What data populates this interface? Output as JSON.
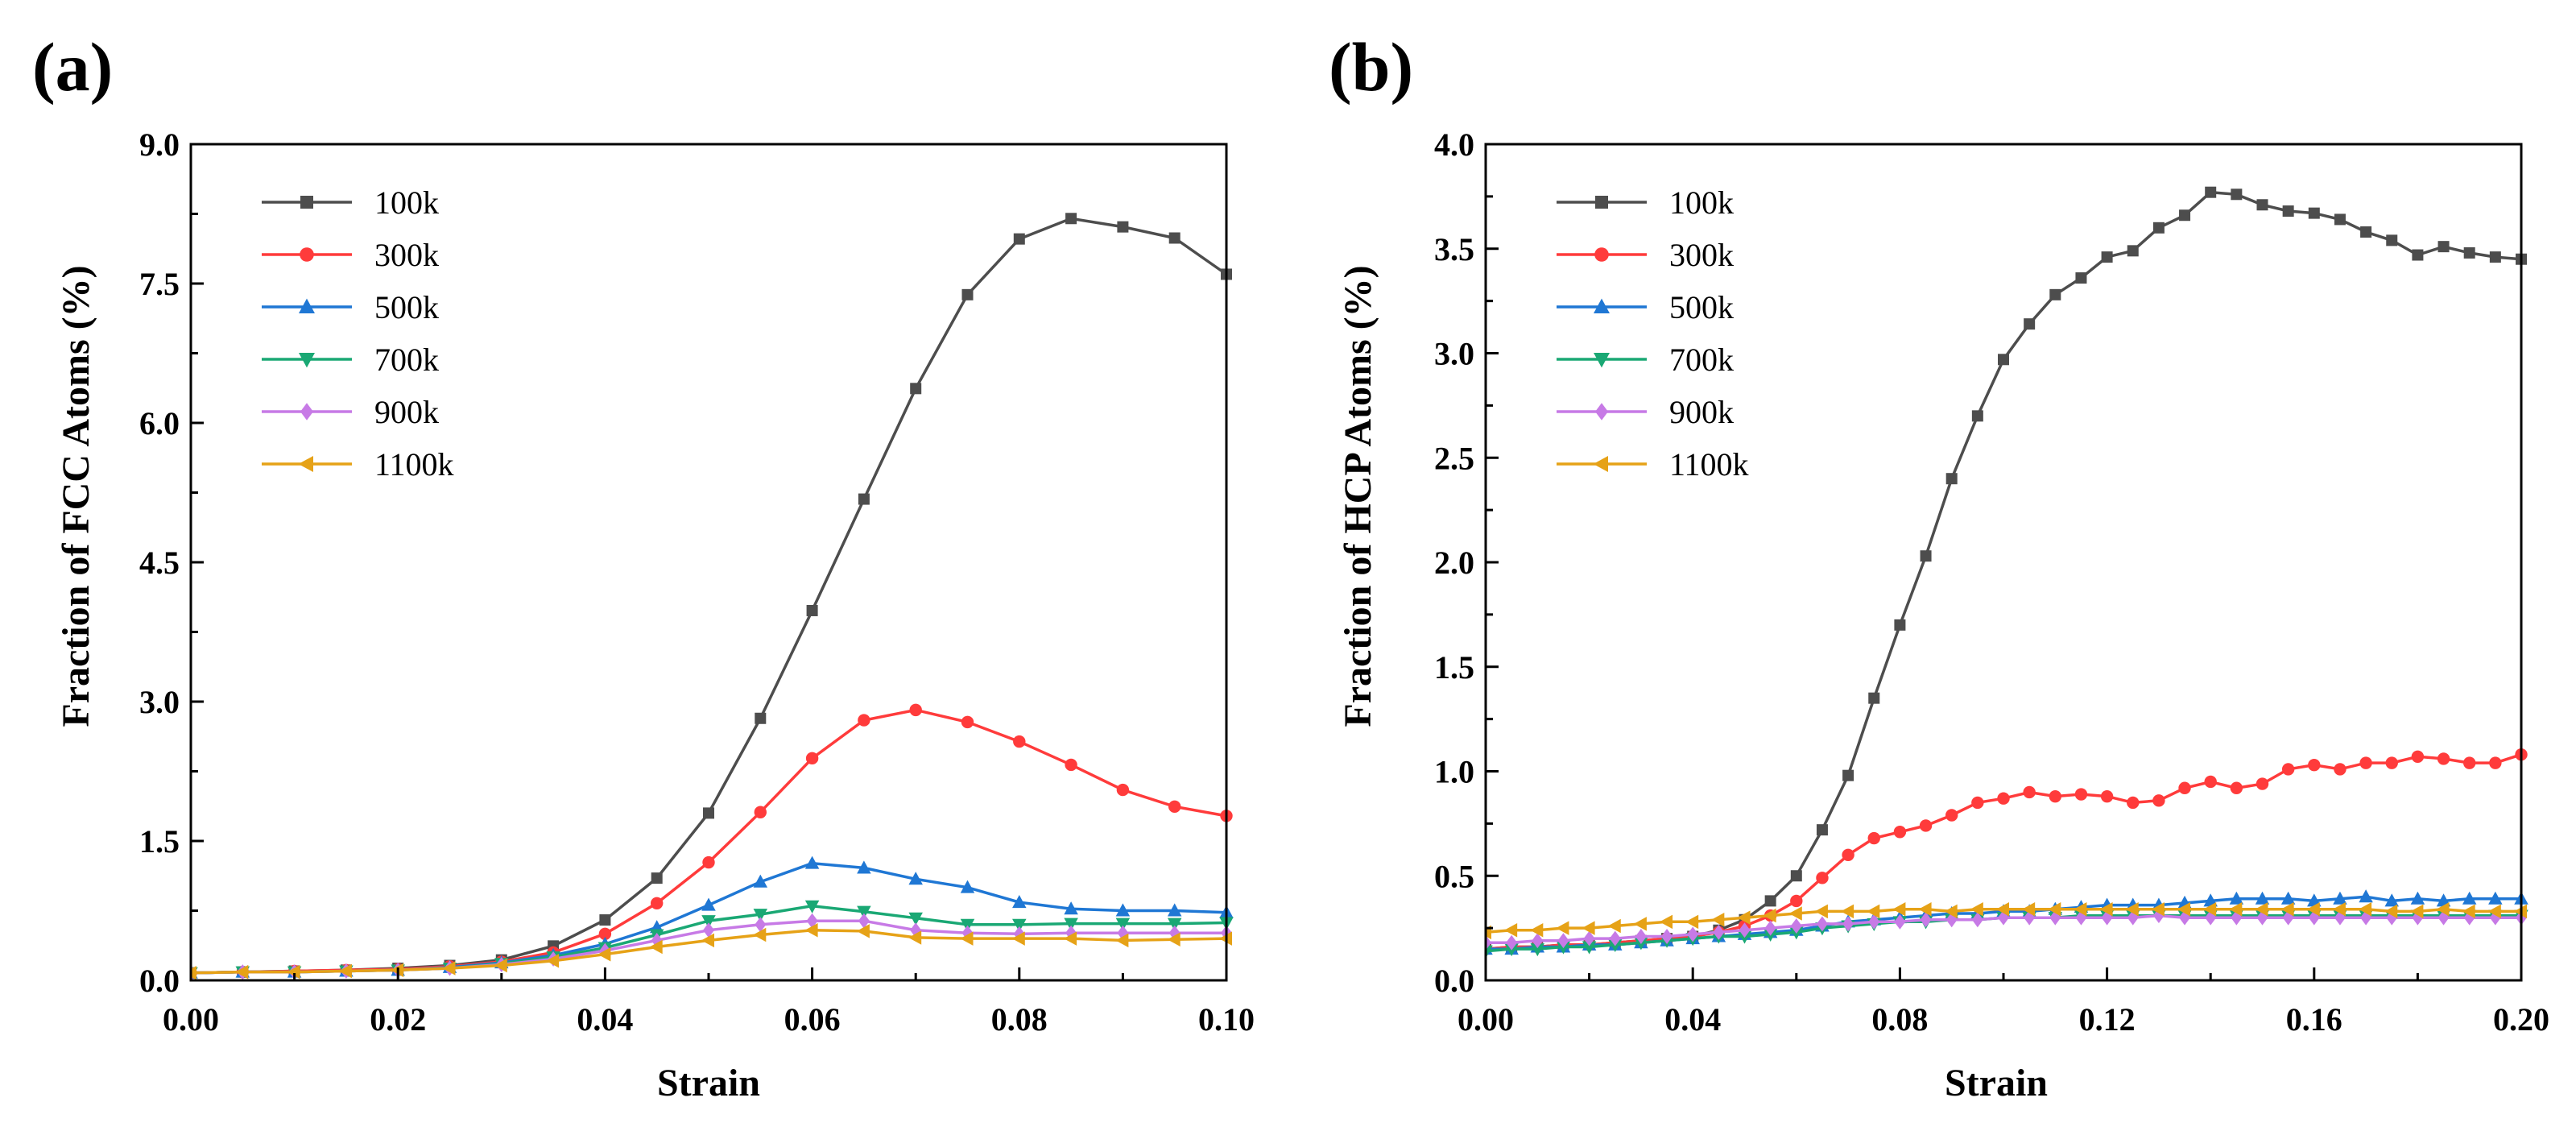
{
  "chart_data": [
    {
      "type": "line",
      "panel_label": "(a)",
      "xlabel": "Strain",
      "ylabel": "Fraction of FCC Atoms (%)",
      "xlim": [
        0,
        0.1
      ],
      "ylim": [
        0,
        9
      ],
      "xticks": [
        0,
        0.02,
        0.04,
        0.06,
        0.08,
        0.1
      ],
      "xtick_labels": [
        "0.00",
        "0.02",
        "0.04",
        "0.06",
        "0.08",
        "0.10"
      ],
      "yticks": [
        0,
        1.5,
        3,
        4.5,
        6,
        7.5,
        9
      ],
      "ytick_labels": [
        "0.0",
        "1.5",
        "3.0",
        "4.5",
        "6.0",
        "7.5",
        "9.0"
      ],
      "legend_position": "top-left",
      "x": [
        0.0,
        0.005,
        0.01,
        0.015,
        0.02,
        0.025,
        0.03,
        0.035,
        0.04,
        0.045,
        0.05,
        0.055,
        0.06,
        0.065,
        0.07,
        0.075,
        0.08,
        0.085,
        0.09,
        0.095,
        0.1
      ],
      "series": [
        {
          "name": "100k",
          "color": "#4d4d4d",
          "marker": "square",
          "values": [
            0.08,
            0.09,
            0.1,
            0.11,
            0.13,
            0.16,
            0.22,
            0.37,
            0.65,
            1.1,
            1.8,
            2.82,
            3.98,
            5.18,
            6.37,
            7.38,
            7.98,
            8.2,
            8.11,
            7.99,
            7.6
          ]
        },
        {
          "name": "300k",
          "color": "#ff3b3b",
          "marker": "circle",
          "values": [
            0.08,
            0.09,
            0.1,
            0.11,
            0.12,
            0.15,
            0.2,
            0.3,
            0.5,
            0.83,
            1.27,
            1.81,
            2.39,
            2.8,
            2.91,
            2.78,
            2.57,
            2.32,
            2.05,
            1.87,
            1.77
          ]
        },
        {
          "name": "500k",
          "color": "#1f77d4",
          "marker": "triangle-up",
          "values": [
            0.08,
            0.09,
            0.09,
            0.1,
            0.11,
            0.14,
            0.19,
            0.27,
            0.39,
            0.57,
            0.81,
            1.06,
            1.26,
            1.21,
            1.09,
            1.0,
            0.84,
            0.77,
            0.75,
            0.75,
            0.73
          ]
        },
        {
          "name": "700k",
          "color": "#1aa874",
          "marker": "triangle-down",
          "values": [
            0.08,
            0.09,
            0.09,
            0.1,
            0.11,
            0.13,
            0.18,
            0.25,
            0.35,
            0.49,
            0.64,
            0.71,
            0.8,
            0.74,
            0.67,
            0.6,
            0.6,
            0.61,
            0.61,
            0.61,
            0.62
          ]
        },
        {
          "name": "900k",
          "color": "#c77ae6",
          "marker": "diamond",
          "values": [
            0.08,
            0.09,
            0.09,
            0.1,
            0.11,
            0.13,
            0.17,
            0.23,
            0.32,
            0.43,
            0.54,
            0.6,
            0.64,
            0.64,
            0.54,
            0.51,
            0.5,
            0.51,
            0.51,
            0.51,
            0.51
          ]
        },
        {
          "name": "1100k",
          "color": "#e6a217",
          "marker": "triangle-left",
          "values": [
            0.08,
            0.09,
            0.09,
            0.1,
            0.11,
            0.13,
            0.16,
            0.21,
            0.28,
            0.36,
            0.43,
            0.49,
            0.54,
            0.53,
            0.46,
            0.45,
            0.45,
            0.45,
            0.43,
            0.44,
            0.45
          ]
        }
      ]
    },
    {
      "type": "line",
      "panel_label": "(b)",
      "xlabel": "Strain",
      "ylabel": "Fraction of HCP Atoms (%)",
      "xlim": [
        0,
        0.2
      ],
      "ylim": [
        0,
        4
      ],
      "xticks": [
        0,
        0.04,
        0.08,
        0.12,
        0.16,
        0.2
      ],
      "xtick_labels": [
        "0.00",
        "0.04",
        "0.08",
        "0.12",
        "0.16",
        "0.20"
      ],
      "yticks": [
        0,
        0.5,
        1,
        1.5,
        2,
        2.5,
        3,
        3.5,
        4
      ],
      "ytick_labels": [
        "0.0",
        "0.5",
        "1.0",
        "1.5",
        "2.0",
        "2.5",
        "3.0",
        "3.5",
        "4.0"
      ],
      "legend_position": "top-left",
      "x": [
        0.0,
        0.005,
        0.01,
        0.015,
        0.02,
        0.025,
        0.03,
        0.035,
        0.04,
        0.045,
        0.05,
        0.055,
        0.06,
        0.065,
        0.07,
        0.075,
        0.08,
        0.085,
        0.09,
        0.095,
        0.1,
        0.105,
        0.11,
        0.115,
        0.12,
        0.125,
        0.13,
        0.135,
        0.14,
        0.145,
        0.15,
        0.155,
        0.16,
        0.165,
        0.17,
        0.175,
        0.18,
        0.185,
        0.19,
        0.195,
        0.2
      ],
      "series": [
        {
          "name": "100k",
          "color": "#4d4d4d",
          "marker": "square",
          "values": [
            0.15,
            0.16,
            0.16,
            0.17,
            0.17,
            0.18,
            0.19,
            0.2,
            0.21,
            0.24,
            0.29,
            0.38,
            0.5,
            0.72,
            0.98,
            1.35,
            1.7,
            2.03,
            2.4,
            2.7,
            2.97,
            3.14,
            3.28,
            3.36,
            3.46,
            3.49,
            3.6,
            3.66,
            3.77,
            3.76,
            3.71,
            3.68,
            3.67,
            3.64,
            3.58,
            3.54,
            3.47,
            3.51,
            3.48,
            3.46,
            3.45
          ]
        },
        {
          "name": "300k",
          "color": "#ff3b3b",
          "marker": "circle",
          "values": [
            0.15,
            0.16,
            0.16,
            0.17,
            0.17,
            0.18,
            0.19,
            0.2,
            0.21,
            0.23,
            0.26,
            0.31,
            0.38,
            0.49,
            0.6,
            0.68,
            0.71,
            0.74,
            0.79,
            0.85,
            0.87,
            0.9,
            0.88,
            0.89,
            0.88,
            0.85,
            0.86,
            0.92,
            0.95,
            0.92,
            0.94,
            1.01,
            1.03,
            1.01,
            1.04,
            1.04,
            1.07,
            1.06,
            1.04,
            1.04,
            1.08
          ]
        },
        {
          "name": "500k",
          "color": "#1f77d4",
          "marker": "triangle-up",
          "values": [
            0.15,
            0.15,
            0.16,
            0.16,
            0.17,
            0.17,
            0.18,
            0.19,
            0.2,
            0.21,
            0.22,
            0.23,
            0.24,
            0.26,
            0.28,
            0.29,
            0.3,
            0.31,
            0.32,
            0.32,
            0.33,
            0.33,
            0.34,
            0.35,
            0.36,
            0.36,
            0.36,
            0.37,
            0.38,
            0.39,
            0.39,
            0.39,
            0.38,
            0.39,
            0.4,
            0.38,
            0.39,
            0.38,
            0.39,
            0.39,
            0.39
          ]
        },
        {
          "name": "700k",
          "color": "#1aa874",
          "marker": "triangle-down",
          "values": [
            0.14,
            0.15,
            0.15,
            0.16,
            0.16,
            0.17,
            0.18,
            0.19,
            0.2,
            0.21,
            0.21,
            0.22,
            0.23,
            0.25,
            0.26,
            0.27,
            0.28,
            0.28,
            0.29,
            0.29,
            0.3,
            0.3,
            0.3,
            0.31,
            0.31,
            0.31,
            0.31,
            0.31,
            0.31,
            0.31,
            0.31,
            0.31,
            0.31,
            0.31,
            0.31,
            0.31,
            0.31,
            0.31,
            0.31,
            0.31,
            0.31
          ]
        },
        {
          "name": "900k",
          "color": "#c77ae6",
          "marker": "diamond",
          "values": [
            0.18,
            0.18,
            0.19,
            0.19,
            0.2,
            0.2,
            0.21,
            0.21,
            0.22,
            0.23,
            0.24,
            0.25,
            0.26,
            0.27,
            0.27,
            0.28,
            0.28,
            0.29,
            0.29,
            0.29,
            0.3,
            0.3,
            0.3,
            0.3,
            0.3,
            0.3,
            0.31,
            0.3,
            0.3,
            0.3,
            0.3,
            0.3,
            0.3,
            0.3,
            0.3,
            0.3,
            0.3,
            0.3,
            0.3,
            0.3,
            0.3
          ]
        },
        {
          "name": "1100k",
          "color": "#e6a217",
          "marker": "triangle-left",
          "values": [
            0.23,
            0.24,
            0.24,
            0.25,
            0.25,
            0.26,
            0.27,
            0.28,
            0.28,
            0.29,
            0.3,
            0.31,
            0.32,
            0.33,
            0.33,
            0.33,
            0.34,
            0.34,
            0.33,
            0.34,
            0.34,
            0.34,
            0.34,
            0.34,
            0.34,
            0.34,
            0.34,
            0.34,
            0.34,
            0.34,
            0.34,
            0.34,
            0.34,
            0.34,
            0.34,
            0.33,
            0.33,
            0.34,
            0.33,
            0.33,
            0.33
          ]
        }
      ]
    }
  ]
}
